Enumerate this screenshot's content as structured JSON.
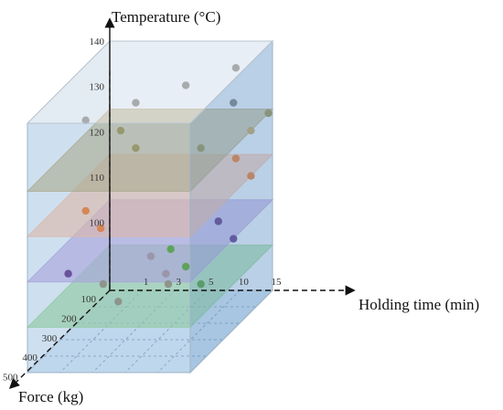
{
  "chart_data": {
    "type": "scatter",
    "projection": "3d",
    "title": "",
    "axes": {
      "x": {
        "label": "Holding time (min)",
        "ticks": [
          "1",
          "3",
          "5",
          "10",
          "15"
        ]
      },
      "y": {
        "label": "Force (kg)",
        "ticks": [
          "100",
          "200",
          "300",
          "400",
          "500"
        ]
      },
      "z": {
        "label": "Temperature (°C)",
        "ticks": [
          "100",
          "110",
          "120",
          "130",
          "140"
        ]
      }
    },
    "planes": [
      {
        "temperature": 95,
        "color": "#8fd18c"
      },
      {
        "temperature": 105,
        "color": "#b39ddb"
      },
      {
        "temperature": 115,
        "color": "#f7b89a"
      },
      {
        "temperature": 125,
        "color": "#b5a676"
      }
    ],
    "series": [
      {
        "temperature": 95,
        "color": "#4c9a2a",
        "points": [
          {
            "time": 3,
            "force": 100
          },
          {
            "time": 5,
            "force": 200
          },
          {
            "time": 10,
            "force": 300
          }
        ]
      },
      {
        "temperature": 105,
        "color": "#5b2c83",
        "points": [
          {
            "time": 1,
            "force": 500
          },
          {
            "time": 10,
            "force": 200
          },
          {
            "time": 15,
            "force": 300
          }
        ]
      },
      {
        "temperature": 115,
        "color": "#f07524",
        "points": [
          {
            "time": 1,
            "force": 400
          },
          {
            "time": 3,
            "force": 500
          },
          {
            "time": 10,
            "force": 100
          },
          {
            "time": 15,
            "force": 200
          }
        ]
      },
      {
        "temperature": 125,
        "color": "#9a8d45",
        "points": [
          {
            "time": 1,
            "force": 200
          },
          {
            "time": 3,
            "force": 300
          },
          {
            "time": 10,
            "force": 300
          },
          {
            "time": 15,
            "force": 100
          }
        ]
      },
      {
        "temperature": 95,
        "color": "#8c8870",
        "points": [
          {
            "time": 1,
            "force": 300
          },
          {
            "time": 3,
            "force": 400
          },
          {
            "time": 5,
            "force": 300
          }
        ]
      },
      {
        "temperature": 105,
        "color": "#a08a98",
        "points": [
          {
            "time": 5,
            "force": 400
          },
          {
            "time": 10,
            "force": 500
          }
        ]
      },
      {
        "temperature": 125,
        "color": "#c4a35a",
        "points": [
          {
            "time": 15,
            "force": 200
          }
        ]
      },
      {
        "temperature": 135,
        "color": "#7a7a7a",
        "points": [
          {
            "time": 1,
            "force": 400
          },
          {
            "time": 3,
            "force": 300
          },
          {
            "time": 5,
            "force": 200
          },
          {
            "time": 10,
            "force": 100
          },
          {
            "time": 15,
            "force": 300
          }
        ]
      }
    ],
    "legend": "none",
    "grid": true
  }
}
